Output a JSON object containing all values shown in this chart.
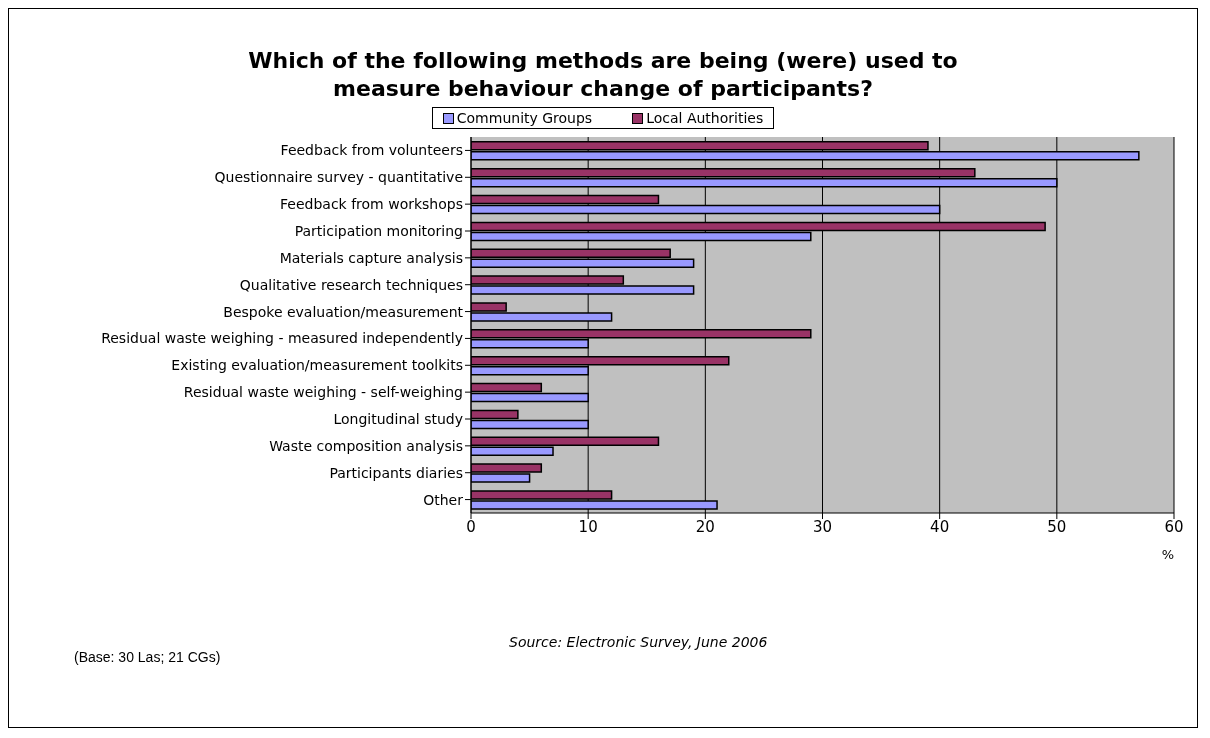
{
  "chart_data": {
    "type": "bar",
    "orientation": "horizontal",
    "title": "Which of the following methods are being (were) used to measure behaviour change of participants?",
    "categories": [
      "Feedback from volunteers",
      "Questionnaire survey - quantitative",
      "Feedback from workshops",
      "Participation monitoring",
      "Materials capture analysis",
      "Qualitative research techniques",
      "Bespoke evaluation/measurement",
      "Residual waste weighing - measured independently",
      "Existing evaluation/measurement toolkits",
      "Residual waste weighing - self-weighing",
      "Longitudinal study",
      "Waste composition analysis",
      "Participants diaries",
      "Other"
    ],
    "series": [
      {
        "name": "Community Groups",
        "color": "#9999ff",
        "values": [
          57,
          50,
          40,
          29,
          19,
          19,
          12,
          10,
          10,
          10,
          10,
          7,
          5,
          21
        ]
      },
      {
        "name": "Local Authorities",
        "color": "#993366",
        "values": [
          39,
          43,
          16,
          49,
          17,
          13,
          3,
          29,
          22,
          6,
          4,
          16,
          6,
          12
        ]
      }
    ],
    "xlabel": "%",
    "xlim": [
      0,
      60
    ],
    "xticks": [
      0,
      10,
      20,
      30,
      40,
      50,
      60
    ],
    "grid": "x",
    "legend": "top",
    "annotations": [
      "Source: Electronic Survey, June 2006",
      "(Base: 30 Las; 21 CGs)"
    ]
  }
}
